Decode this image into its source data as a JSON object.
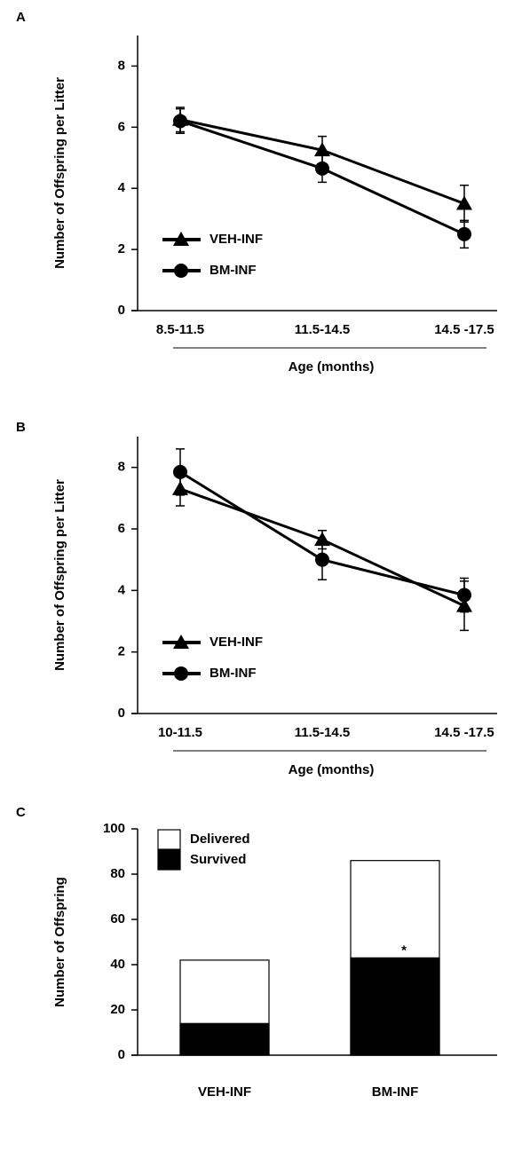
{
  "chart_data": [
    {
      "type": "line",
      "panel": "A",
      "ylabel": "Number of Offspring per Litter",
      "xlabel": "Age (months)",
      "categories": [
        "8.5-11.5",
        "11.5-14.5",
        "14.5 -17.5"
      ],
      "series": [
        {
          "name": "VEH-INF",
          "color": "#000000",
          "marker": "triangle",
          "values": [
            6.25,
            5.25,
            3.5
          ],
          "errors": [
            0.4,
            0.45,
            0.6
          ]
        },
        {
          "name": "BM-INF",
          "color": "#000000",
          "marker": "circle",
          "values": [
            6.2,
            4.65,
            2.5
          ],
          "errors": [
            0.4,
            0.45,
            0.45
          ]
        }
      ],
      "ylim": [
        0,
        9
      ],
      "yticks": [
        0,
        2,
        4,
        6,
        8
      ],
      "legend": "lower left"
    },
    {
      "type": "line",
      "panel": "B",
      "ylabel": "Number of Offspring per Litter",
      "xlabel": "Age (months)",
      "categories": [
        "10-11.5",
        "11.5-14.5",
        "14.5 -17.5"
      ],
      "series": [
        {
          "name": "VEH-INF",
          "color": "#000000",
          "marker": "triangle",
          "values": [
            7.3,
            5.65,
            3.5
          ],
          "errors": [
            0.55,
            0.3,
            0.8
          ]
        },
        {
          "name": "BM-INF",
          "color": "#000000",
          "marker": "circle",
          "values": [
            7.85,
            5.0,
            3.85
          ],
          "errors": [
            0.75,
            0.65,
            0.55
          ]
        }
      ],
      "ylim": [
        0,
        9
      ],
      "yticks": [
        0,
        2,
        4,
        6,
        8
      ],
      "legend": "lower left"
    },
    {
      "type": "bar",
      "panel": "C",
      "ylabel": "Number of Offspring",
      "categories": [
        "VEH-INF",
        "BM-INF"
      ],
      "series": [
        {
          "name": "Delivered",
          "color": "#ffffff",
          "values": [
            42,
            86
          ]
        },
        {
          "name": "Survived",
          "color": "#000000",
          "values": [
            14,
            43
          ]
        }
      ],
      "annotation": "*",
      "ylim": [
        0,
        100
      ],
      "yticks": [
        0,
        20,
        40,
        60,
        80,
        100
      ],
      "legend": "upper left"
    }
  ]
}
